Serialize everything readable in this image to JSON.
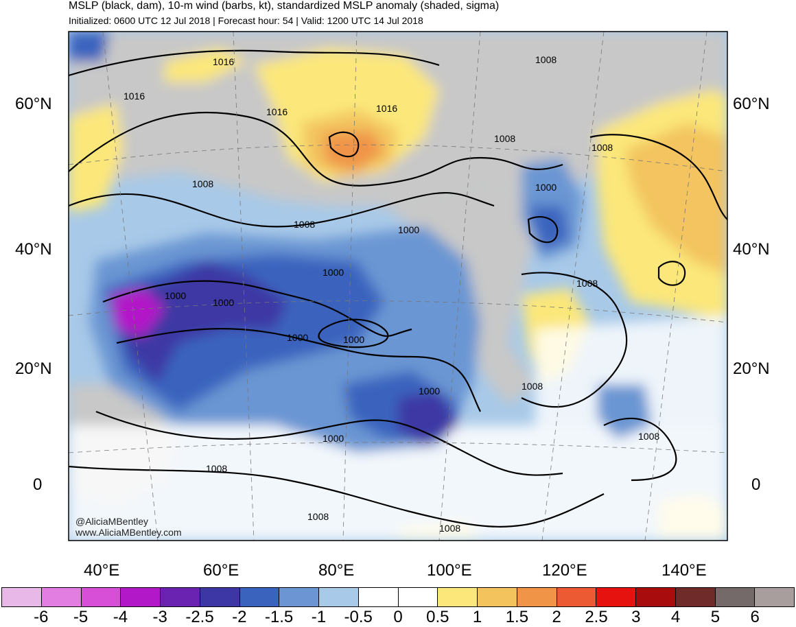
{
  "header": {
    "title": "MSLP (black, dam), 10-m wind (barbs, kt), standardized MSLP anomaly (shaded, sigma)",
    "subtitle": "Initialized: 0600 UTC 12 Jul 2018 | Forecast hour: 54 | Valid: 1200 UTC 14 Jul 2018"
  },
  "map": {
    "lat_labels": [
      "60°N",
      "40°N",
      "20°N",
      "0"
    ],
    "lon_labels": [
      "40°E",
      "60°E",
      "80°E",
      "100°E",
      "120°E",
      "140°E"
    ],
    "contour_labels": [
      "1016",
      "1016",
      "1016",
      "1016",
      "1016",
      "1008",
      "1008",
      "1008",
      "1008",
      "1008",
      "1008",
      "1008",
      "1008",
      "1008",
      "1008",
      "1008",
      "1008",
      "1000",
      "1000",
      "1000",
      "1000",
      "1000",
      "1000",
      "1000",
      "1000",
      "1000"
    ],
    "credit": [
      "@AliciaMBentley",
      "www.AliciaMBentley.com"
    ]
  },
  "colorbar": {
    "ticks": [
      "-6",
      "-5",
      "-4",
      "-3",
      "-2.5",
      "-2",
      "-1.5",
      "-1",
      "-0.5",
      "0",
      "0.5",
      "1",
      "1.5",
      "2",
      "2.5",
      "3",
      "4",
      "5",
      "6"
    ],
    "colors": [
      "#e8b8e8",
      "#e27ee2",
      "#d64fd6",
      "#b318c8",
      "#6a22b0",
      "#3c37a4",
      "#3a63be",
      "#6b96d3",
      "#a8c9e8",
      "#ffffff",
      "#ffffff",
      "#fbe77a",
      "#f3c45e",
      "#f09448",
      "#ec5a34",
      "#e6120f",
      "#a80c0c",
      "#6f2a2a",
      "#746a6a",
      "#a89e9e"
    ]
  }
}
